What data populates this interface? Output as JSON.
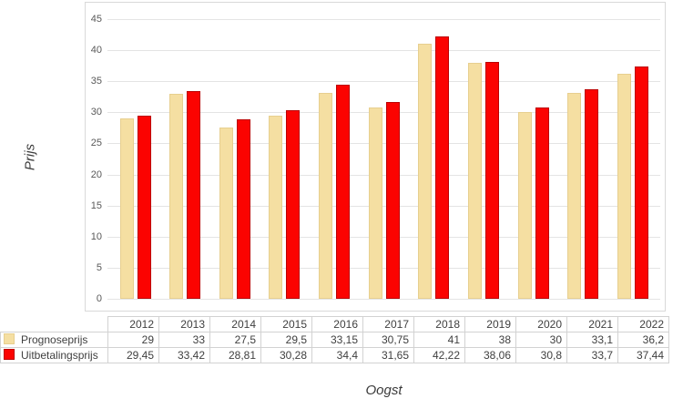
{
  "chart_data": {
    "type": "bar",
    "title": "",
    "xlabel": "Oogst",
    "ylabel": "Prijs",
    "categories": [
      "2012",
      "2013",
      "2014",
      "2015",
      "2016",
      "2017",
      "2018",
      "2019",
      "2020",
      "2021",
      "2022"
    ],
    "series": [
      {
        "name": "Prognoseprijs",
        "color": "#F5DFA2",
        "border_color": "#E7CF8F",
        "values": [
          29,
          33,
          27.5,
          29.5,
          33.15,
          30.75,
          41,
          38,
          30,
          33.1,
          36.2
        ],
        "values_display": [
          "29",
          "33",
          "27,5",
          "29,5",
          "33,15",
          "30,75",
          "41",
          "38",
          "30",
          "33,1",
          "36,2"
        ]
      },
      {
        "name": "Uitbetalingsprijs",
        "color": "#FB0301",
        "border_color": "#BC0000",
        "values": [
          29.45,
          33.42,
          28.81,
          30.28,
          34.4,
          31.65,
          42.22,
          38.06,
          30.8,
          33.7,
          37.44
        ],
        "values_display": [
          "29,45",
          "33,42",
          "28,81",
          "30,28",
          "34,4",
          "31,65",
          "42,22",
          "38,06",
          "30,8",
          "33,7",
          "37,44"
        ]
      }
    ],
    "ylim": [
      0,
      45
    ],
    "ytick_step": 5,
    "yticks": [
      "0",
      "5",
      "10",
      "15",
      "20",
      "25",
      "30",
      "35",
      "40",
      "45"
    ],
    "grid": true,
    "legend_position": "data-table-left",
    "colors": {
      "gridline": "#E4E4E4",
      "frame_border": "#D9D9D9",
      "table_border": "#D2D2D2",
      "tick_text": "#595959",
      "table_text": "#3F3F3F"
    }
  }
}
